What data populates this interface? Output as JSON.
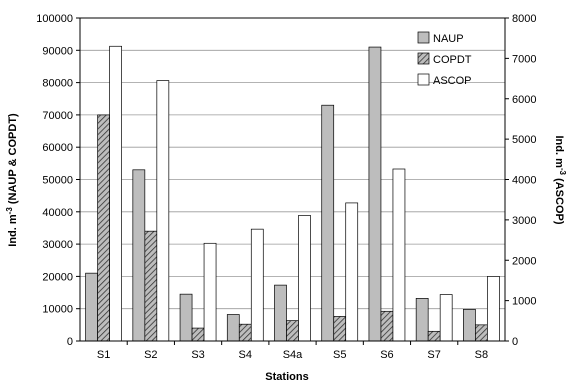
{
  "chart_data": {
    "type": "bar",
    "categories": [
      "S1",
      "S2",
      "S3",
      "S4",
      "S4a",
      "S5",
      "S6",
      "S7",
      "S8"
    ],
    "series": [
      {
        "name": "NAUP",
        "axis": "left",
        "color": "#bdbdbd",
        "pattern": "solid",
        "values": [
          21000,
          53000,
          14500,
          8200,
          17300,
          73000,
          91000,
          13200,
          9800
        ]
      },
      {
        "name": "COPDT",
        "axis": "left",
        "color": "#8a8a8a",
        "pattern": "hatch",
        "values": [
          70000,
          34000,
          4000,
          5200,
          6300,
          7600,
          9200,
          3000,
          5000
        ]
      },
      {
        "name": "ASCOP",
        "axis": "right",
        "color": "#ffffff",
        "pattern": "solid",
        "values": [
          7300,
          6450,
          2420,
          2770,
          3110,
          3420,
          4260,
          1150,
          1600
        ]
      }
    ],
    "xlabel": "Stations",
    "ylabel_left_main": "Ind. m",
    "ylabel_left_sup": "-3",
    "ylabel_left_rest": " (NAUP & COPDT)",
    "ylabel_right_main": "Ind. m",
    "ylabel_right_sup": "-3",
    "ylabel_right_rest": " (ASCOP)",
    "ylim_left": [
      0,
      100000
    ],
    "ylim_right": [
      0,
      8000
    ],
    "yticks_left": [
      "0",
      "10000",
      "20000",
      "30000",
      "40000",
      "50000",
      "60000",
      "70000",
      "80000",
      "90000",
      "100000"
    ],
    "yticks_right": [
      "0",
      "1000",
      "2000",
      "3000",
      "4000",
      "5000",
      "6000",
      "7000",
      "8000"
    ],
    "grid": true,
    "legend": "top-right"
  }
}
